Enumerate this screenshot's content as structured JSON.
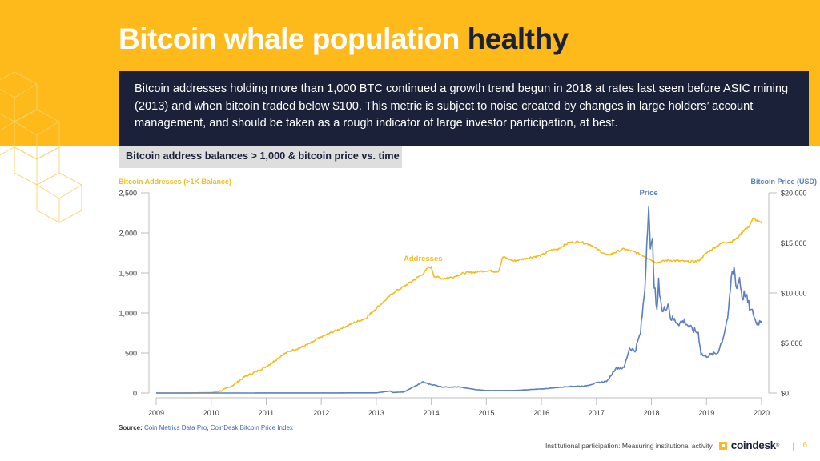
{
  "slide": {
    "title_light": "Bitcoin whale population",
    "title_dark": "healthy",
    "description": "Bitcoin addresses holding more than 1,000 BTC continued a growth trend begun in 2018 at rates last seen before ASIC mining (2013) and when bitcoin traded below $100. This metric is subject to noise created by changes in large holders’ account management, and should be taken as a rough indicator of large investor participation, at best.",
    "chart_tag": "Bitcoin address balances > 1,000 & bitcoin price vs. time",
    "source_label": "Source:",
    "source_links": [
      "Coin Metrics Data Pro",
      "CoinDesk Bitcoin Price Index"
    ],
    "source_sep": ", ",
    "footer_text": "Institutional participation: Measuring institutional activity",
    "logo_text": "coindesk",
    "logo_reg": "®",
    "page_sep": "|",
    "page_number": "6"
  },
  "colors": {
    "brand_yellow": "#FEBA1B",
    "navy": "#1B2138",
    "addresses_line": "#F2BC1E",
    "price_line": "#5B7FC0",
    "left_axis_title": "#F2BC1E",
    "right_axis_title": "#5B7FC0"
  },
  "chart_data": {
    "type": "line",
    "title": "Bitcoin address balances > 1,000 & bitcoin price vs. time",
    "xlabel": "",
    "ylabel": "Bitcoin Addresses (>1K Balance)",
    "y2label": "Bitcoin Price (USD)",
    "xlim": [
      2009,
      2020
    ],
    "ylim": [
      0,
      2500
    ],
    "y2lim": [
      0,
      20000
    ],
    "x_ticks": [
      "2009",
      "2010",
      "2011",
      "2012",
      "2013",
      "2014",
      "2015",
      "2016",
      "2017",
      "2018",
      "2019",
      "2020"
    ],
    "y_ticks": [
      "0",
      "500",
      "1,000",
      "1,500",
      "2,000",
      "2,500"
    ],
    "y2_ticks": [
      "$0",
      "$5,000",
      "$10,000",
      "$15,000",
      "$20,000"
    ],
    "grid": false,
    "annotations": [
      {
        "text": "Addresses",
        "series": "Addresses",
        "x": 2013.85,
        "y": 1700
      },
      {
        "text": "Price",
        "series": "Price",
        "x": 2017.95,
        "y": 20000
      }
    ],
    "series": [
      {
        "name": "Addresses",
        "axis": "left",
        "x": [
          2009.0,
          2009.5,
          2010.0,
          2010.15,
          2010.3,
          2010.45,
          2010.6,
          2010.8,
          2011.0,
          2011.15,
          2011.3,
          2011.45,
          2011.6,
          2011.8,
          2012.0,
          2012.2,
          2012.4,
          2012.6,
          2012.8,
          2013.0,
          2013.15,
          2013.3,
          2013.5,
          2013.7,
          2013.85,
          2013.95,
          2014.0,
          2014.05,
          2014.2,
          2014.4,
          2014.6,
          2014.8,
          2015.0,
          2015.15,
          2015.22,
          2015.3,
          2015.5,
          2015.7,
          2016.0,
          2016.15,
          2016.3,
          2016.5,
          2016.7,
          2016.9,
          2017.0,
          2017.2,
          2017.35,
          2017.5,
          2017.7,
          2017.9,
          2018.0,
          2018.1,
          2018.3,
          2018.5,
          2018.7,
          2018.85,
          2019.0,
          2019.15,
          2019.3,
          2019.45,
          2019.55,
          2019.7,
          2019.75,
          2019.85,
          2020.0
        ],
        "values": [
          0,
          0,
          5,
          20,
          60,
          120,
          200,
          260,
          330,
          400,
          480,
          530,
          560,
          620,
          700,
          760,
          820,
          880,
          930,
          1060,
          1150,
          1250,
          1330,
          1420,
          1490,
          1570,
          1570,
          1460,
          1430,
          1450,
          1500,
          1510,
          1530,
          1520,
          1520,
          1700,
          1650,
          1680,
          1720,
          1780,
          1800,
          1880,
          1890,
          1850,
          1800,
          1720,
          1760,
          1800,
          1760,
          1700,
          1660,
          1630,
          1660,
          1650,
          1640,
          1650,
          1750,
          1820,
          1880,
          1890,
          1930,
          2050,
          2060,
          2180,
          2120
        ]
      },
      {
        "name": "Price",
        "axis": "right",
        "x": [
          2009.0,
          2010.0,
          2011.0,
          2012.0,
          2013.0,
          2013.25,
          2013.3,
          2013.5,
          2013.85,
          2013.95,
          2014.05,
          2014.2,
          2014.5,
          2014.8,
          2015.0,
          2015.5,
          2016.0,
          2016.4,
          2016.5,
          2016.8,
          2017.0,
          2017.2,
          2017.35,
          2017.5,
          2017.6,
          2017.7,
          2017.8,
          2017.88,
          2017.95,
          2017.98,
          2018.02,
          2018.05,
          2018.1,
          2018.13,
          2018.2,
          2018.3,
          2018.35,
          2018.5,
          2018.6,
          2018.7,
          2018.85,
          2018.9,
          2018.95,
          2019.0,
          2019.2,
          2019.3,
          2019.4,
          2019.45,
          2019.5,
          2019.55,
          2019.6,
          2019.65,
          2019.7,
          2019.8,
          2019.85,
          2019.9,
          2020.0
        ],
        "values": [
          0,
          0,
          5,
          10,
          15,
          200,
          50,
          100,
          1100,
          900,
          800,
          600,
          600,
          350,
          250,
          250,
          400,
          600,
          650,
          700,
          1000,
          1200,
          2500,
          2500,
          4500,
          4200,
          6000,
          10500,
          19500,
          14000,
          15000,
          11000,
          8000,
          11000,
          8000,
          9000,
          7500,
          7000,
          7200,
          6500,
          6000,
          4000,
          3700,
          3700,
          4000,
          5500,
          8000,
          11500,
          12500,
          10500,
          11500,
          9500,
          10000,
          8200,
          8000,
          7000,
          7200
        ]
      }
    ]
  }
}
